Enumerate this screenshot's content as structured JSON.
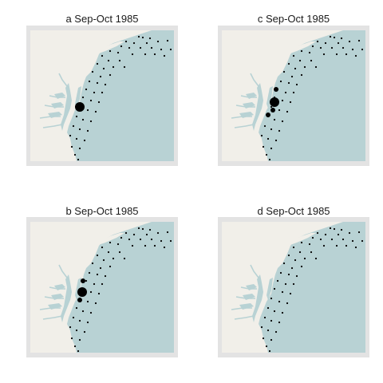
{
  "colors": {
    "sea": "#b8d2d4",
    "land": "#f1efe9",
    "frame": "#e3e3e3",
    "point": "#000000"
  },
  "panels": [
    {
      "id": "a",
      "title": "a Sep-Oct 1985",
      "large_points": 1
    },
    {
      "id": "b",
      "title": "b Sep-Oct 1985",
      "large_points": 3
    },
    {
      "id": "c",
      "title": "c Sep-Oct 1985",
      "large_points": 4
    },
    {
      "id": "d",
      "title": "d Sep-Oct 1985",
      "large_points": 0
    }
  ]
}
